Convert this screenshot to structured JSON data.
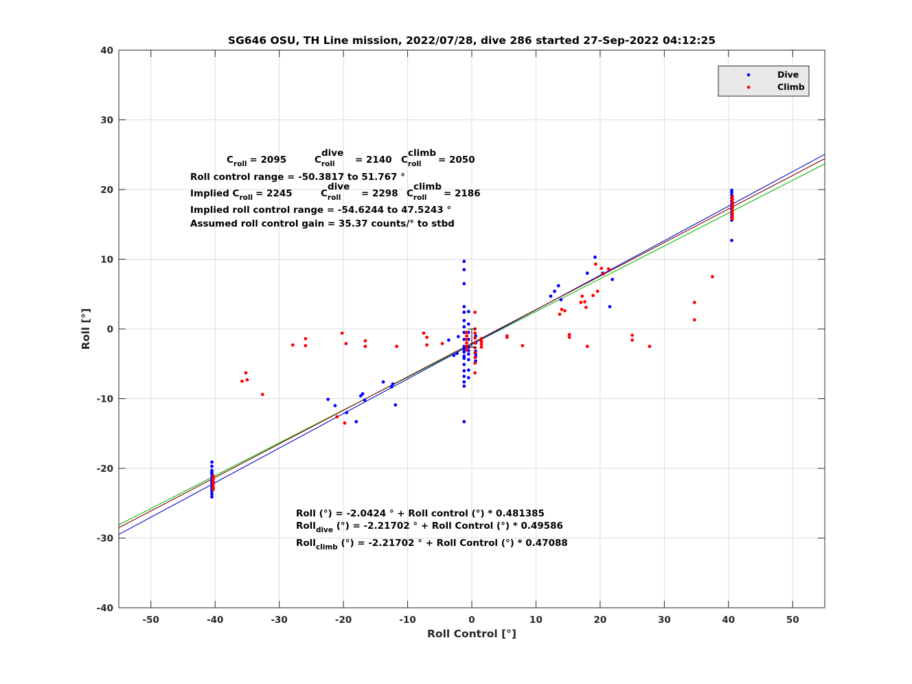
{
  "chart_data": {
    "type": "scatter",
    "title": "SG646 OSU, TH Line mission, 2022/07/28, dive 286 started 27-Sep-2022 04:12:25",
    "xlabel": "Roll Control [°]",
    "ylabel": "Roll [°]",
    "xlim": [
      -55,
      55
    ],
    "ylim": [
      -40,
      40
    ],
    "xticks": [
      "-50",
      "-40",
      "-30",
      "-20",
      "-10",
      "0",
      "10",
      "20",
      "30",
      "40",
      "50"
    ],
    "yticks": [
      "-40",
      "-30",
      "-20",
      "-10",
      "0",
      "10",
      "20",
      "30",
      "40"
    ],
    "grid": true,
    "legend_position": "top-right",
    "colors": {
      "dive": "#0000ff",
      "climb": "#ff0000",
      "fit_all": "#7a0000",
      "fit_dive": "#0000cc",
      "fit_climb": "#00bb00",
      "grid": "#dcdcdc"
    },
    "series": [
      {
        "name": "Dive",
        "color": "#0000ff",
        "points": [
          [
            -40.5,
            -19.1
          ],
          [
            -40.5,
            -19.7
          ],
          [
            -40.5,
            -20.3
          ],
          [
            -40.5,
            -20.8
          ],
          [
            -40.5,
            -21.2
          ],
          [
            -40.5,
            -21.6
          ],
          [
            -40.5,
            -22.0
          ],
          [
            -40.5,
            -22.3
          ],
          [
            -40.5,
            -22.7
          ],
          [
            -40.5,
            -23.0
          ],
          [
            -40.5,
            -23.3
          ],
          [
            -40.5,
            -23.7
          ],
          [
            -40.5,
            -24.1
          ],
          [
            -40.5,
            -20.6
          ],
          [
            -40.5,
            -21.9
          ],
          [
            -22.4,
            -10.1
          ],
          [
            -21.3,
            -11.0
          ],
          [
            -19.5,
            -12.0
          ],
          [
            -18.0,
            -13.3
          ],
          [
            -17.3,
            -9.6
          ],
          [
            -17.0,
            -9.3
          ],
          [
            -16.7,
            -10.2
          ],
          [
            -13.8,
            -7.6
          ],
          [
            -12.5,
            -8.3
          ],
          [
            -12.3,
            -7.9
          ],
          [
            -11.9,
            -10.9
          ],
          [
            -3.6,
            -1.6
          ],
          [
            -2.8,
            -3.8
          ],
          [
            -2.3,
            -3.5
          ],
          [
            -2.1,
            -1.1
          ],
          [
            -1.2,
            9.7
          ],
          [
            -1.2,
            8.5
          ],
          [
            -1.2,
            6.5
          ],
          [
            -1.2,
            3.2
          ],
          [
            -1.2,
            2.4
          ],
          [
            -1.2,
            1.2
          ],
          [
            -1.2,
            0.3
          ],
          [
            -1.2,
            -0.5
          ],
          [
            -1.2,
            -1.5
          ],
          [
            -1.2,
            -2.5
          ],
          [
            -1.2,
            -3.3
          ],
          [
            -1.2,
            -4.2
          ],
          [
            -1.2,
            -5.1
          ],
          [
            -1.2,
            -6.0
          ],
          [
            -1.2,
            -6.8
          ],
          [
            -1.2,
            -7.6
          ],
          [
            -1.2,
            -8.2
          ],
          [
            -1.2,
            -13.3
          ],
          [
            -1.2,
            -3.9
          ],
          [
            -1.2,
            -2.9
          ],
          [
            -0.5,
            2.5
          ],
          [
            -0.5,
            0.7
          ],
          [
            -0.5,
            -0.5
          ],
          [
            -0.5,
            -1.5
          ],
          [
            -0.5,
            -2.6
          ],
          [
            -0.5,
            -3.6
          ],
          [
            -0.5,
            -4.4
          ],
          [
            -0.5,
            -5.9
          ],
          [
            -0.5,
            -7.0
          ],
          [
            -0.5,
            -3.1
          ],
          [
            0.6,
            -1.0
          ],
          [
            0.6,
            -2.0
          ],
          [
            0.6,
            -3.2
          ],
          [
            0.6,
            -4.0
          ],
          [
            0.6,
            -4.6
          ],
          [
            0.6,
            -3.6
          ],
          [
            12.3,
            4.7
          ],
          [
            12.9,
            5.4
          ],
          [
            13.5,
            6.2
          ],
          [
            13.9,
            4.2
          ],
          [
            18.0,
            8.0
          ],
          [
            19.2,
            10.3
          ],
          [
            20.4,
            8.0
          ],
          [
            21.5,
            3.2
          ],
          [
            21.9,
            7.1
          ],
          [
            40.5,
            19.9
          ],
          [
            40.5,
            19.6
          ],
          [
            40.5,
            19.2
          ],
          [
            40.5,
            18.8
          ],
          [
            40.5,
            18.4
          ],
          [
            40.5,
            18.0
          ],
          [
            40.5,
            17.6
          ],
          [
            40.5,
            17.2
          ],
          [
            40.5,
            16.8
          ],
          [
            40.5,
            16.4
          ],
          [
            40.5,
            16.0
          ],
          [
            40.5,
            15.6
          ],
          [
            40.5,
            12.7
          ]
        ]
      },
      {
        "name": "Climb",
        "color": "#ff0000",
        "points": [
          [
            -40.3,
            -21.1
          ],
          [
            -40.3,
            -21.5
          ],
          [
            -40.3,
            -21.9
          ],
          [
            -40.3,
            -22.3
          ],
          [
            -40.3,
            -22.7
          ],
          [
            -40.3,
            -23.0
          ],
          [
            -35.8,
            -7.5
          ],
          [
            -35.2,
            -6.3
          ],
          [
            -35.0,
            -7.3
          ],
          [
            -32.6,
            -9.4
          ],
          [
            -27.9,
            -2.3
          ],
          [
            -25.9,
            -1.4
          ],
          [
            -25.9,
            -2.4
          ],
          [
            -21.0,
            -12.6
          ],
          [
            -20.2,
            -0.6
          ],
          [
            -19.8,
            -13.5
          ],
          [
            -19.6,
            -2.1
          ],
          [
            -16.6,
            -1.7
          ],
          [
            -16.6,
            -2.5
          ],
          [
            -11.7,
            -2.5
          ],
          [
            -7.5,
            -0.6
          ],
          [
            -7.0,
            -1.2
          ],
          [
            -7.0,
            -2.3
          ],
          [
            -4.6,
            -2.1
          ],
          [
            -0.8,
            -0.5
          ],
          [
            -0.8,
            -1.0
          ],
          [
            -0.8,
            -1.5
          ],
          [
            -0.8,
            -2.0
          ],
          [
            -0.8,
            -2.5
          ],
          [
            -0.8,
            -3.0
          ],
          [
            0.5,
            2.4
          ],
          [
            0.5,
            0.0
          ],
          [
            0.5,
            -0.6
          ],
          [
            0.5,
            -1.3
          ],
          [
            0.5,
            -2.0
          ],
          [
            0.5,
            -2.7
          ],
          [
            0.5,
            -3.4
          ],
          [
            0.5,
            -4.1
          ],
          [
            0.5,
            -4.9
          ],
          [
            0.5,
            -6.3
          ],
          [
            1.5,
            -1.4
          ],
          [
            1.5,
            -1.8
          ],
          [
            1.5,
            -2.2
          ],
          [
            1.5,
            -2.6
          ],
          [
            5.5,
            -1.0
          ],
          [
            5.5,
            -1.2
          ],
          [
            7.9,
            -2.4
          ],
          [
            13.7,
            2.1
          ],
          [
            14.0,
            2.8
          ],
          [
            14.5,
            2.6
          ],
          [
            15.2,
            -0.8
          ],
          [
            15.2,
            -1.2
          ],
          [
            17.0,
            3.8
          ],
          [
            17.2,
            4.7
          ],
          [
            17.6,
            3.9
          ],
          [
            17.8,
            3.1
          ],
          [
            18.0,
            -2.5
          ],
          [
            18.9,
            4.8
          ],
          [
            19.3,
            9.3
          ],
          [
            19.6,
            5.4
          ],
          [
            20.2,
            8.7
          ],
          [
            20.5,
            7.9
          ],
          [
            21.3,
            8.6
          ],
          [
            25.0,
            -0.9
          ],
          [
            25.0,
            -1.6
          ],
          [
            27.7,
            -2.5
          ],
          [
            34.7,
            3.8
          ],
          [
            34.7,
            1.3
          ],
          [
            37.5,
            7.5
          ],
          [
            40.6,
            19.0
          ],
          [
            40.6,
            18.6
          ],
          [
            40.6,
            18.2
          ],
          [
            40.6,
            17.8
          ],
          [
            40.6,
            17.4
          ],
          [
            40.6,
            17.0
          ],
          [
            40.6,
            16.6
          ],
          [
            40.6,
            16.2
          ],
          [
            40.6,
            15.8
          ]
        ]
      }
    ],
    "fit_lines": [
      {
        "name": "all",
        "color": "#7a0000",
        "intercept": -2.0424,
        "slope": 0.481385
      },
      {
        "name": "dive",
        "color": "#0000cc",
        "intercept": -2.21702,
        "slope": 0.49586
      },
      {
        "name": "climb",
        "color": "#00bb00",
        "intercept": -2.21702,
        "slope": 0.47088
      }
    ],
    "errorbar": {
      "x": 0.0,
      "y_low": -2.6,
      "y_high": 0.0,
      "x_low": -0.6,
      "x_high": 0.6
    }
  },
  "annotations": {
    "c_roll_label": "C",
    "c_roll_sub": "roll",
    "c_roll_value": "= 2095",
    "c_dive_sup": "dive",
    "c_dive_sub": "roll",
    "c_dive_value": "= 2140",
    "c_climb_sup": "climb",
    "c_climb_sub": "roll",
    "c_climb_value": "= 2050",
    "roll_control_range": "Roll control range = -50.3817 to 51.767  °",
    "implied_prefix": "Implied C",
    "implied_sub": "roll",
    "implied_value": "= 2245",
    "implied_dive_value": "= 2298",
    "implied_climb_value": "= 2186",
    "implied_range": "Implied roll control range = -54.6244 to 47.5243 °",
    "assumed_gain": "Assumed roll control gain = 35.37 counts/° to stbd",
    "eq_all": "Roll (°) = -2.0424 ° + Roll control (°) * 0.481385",
    "eq_dive_prefix": "Roll",
    "eq_dive_sub": "dive",
    "eq_dive_rest": " (°) = -2.21702 ° + Roll Control (°) * 0.49586",
    "eq_climb_prefix": "Roll",
    "eq_climb_sub": "climb",
    "eq_climb_rest": " (°) = -2.21702 ° + Roll Control (°) * 0.47088"
  }
}
